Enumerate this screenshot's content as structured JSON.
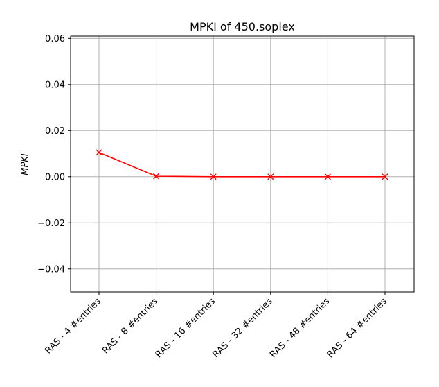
{
  "chart_data": {
    "type": "line",
    "title": "MPKI of 450.soplex",
    "xlabel": "",
    "ylabel": "MPKI",
    "categories": [
      "RAS - 4 #entries",
      "RAS - 8 #entries",
      "RAS - 16 #entries",
      "RAS - 32 #entries",
      "RAS - 48 #entries",
      "RAS - 64 #entries"
    ],
    "series": [
      {
        "values": [
          0.0105,
          0.0002,
          0.0,
          0.0,
          0.0,
          0.0
        ],
        "color": "#ff0000",
        "marker": "x"
      }
    ],
    "ylim": [
      -0.05,
      0.061
    ],
    "yticks": [
      -0.04,
      -0.02,
      0.0,
      0.02,
      0.04,
      0.06
    ],
    "ytick_labels": [
      "−0.04",
      "−0.02",
      "0.00",
      "0.02",
      "0.04",
      "0.06"
    ],
    "grid": true,
    "legend": "none"
  }
}
